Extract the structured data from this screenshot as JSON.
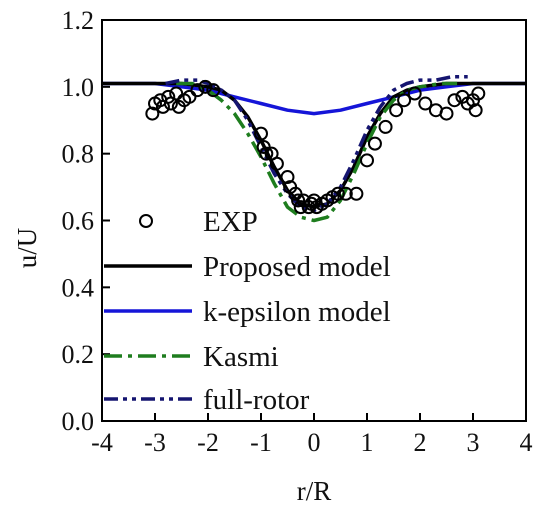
{
  "chart_data": {
    "type": "line",
    "title": "",
    "xlabel": "r/R",
    "ylabel": "u/U",
    "xlim": [
      -4,
      4
    ],
    "ylim": [
      0,
      1.2
    ],
    "xticks": [
      -4,
      -3,
      -2,
      -1,
      0,
      1,
      2,
      3,
      4
    ],
    "xtick_labels": [
      "-4",
      "-3",
      "-2",
      "-1",
      "0",
      "1",
      "2",
      "3",
      "4"
    ],
    "yticks": [
      0,
      0.2,
      0.4,
      0.6,
      0.8,
      1.0,
      1.2
    ],
    "ytick_labels": [
      "0.0",
      "0.2",
      "0.4",
      "0.6",
      "0.8",
      "1.0",
      "1.2"
    ],
    "grid": false,
    "legend_position": "lower-left",
    "series": [
      {
        "name": "EXP",
        "style": "open-circle-markers",
        "color": "#000000",
        "points": [
          [
            -3.05,
            0.92
          ],
          [
            -3.0,
            0.95
          ],
          [
            -2.9,
            0.96
          ],
          [
            -2.85,
            0.94
          ],
          [
            -2.75,
            0.97
          ],
          [
            -2.7,
            0.95
          ],
          [
            -2.6,
            0.98
          ],
          [
            -2.55,
            0.94
          ],
          [
            -2.45,
            0.96
          ],
          [
            -2.35,
            0.97
          ],
          [
            -2.2,
            0.99
          ],
          [
            -2.05,
            1.0
          ],
          [
            -1.9,
            0.99
          ],
          [
            -1.0,
            0.86
          ],
          [
            -0.95,
            0.82
          ],
          [
            -0.9,
            0.8
          ],
          [
            -0.8,
            0.8
          ],
          [
            -0.7,
            0.77
          ],
          [
            -0.5,
            0.73
          ],
          [
            -0.45,
            0.7
          ],
          [
            -0.35,
            0.68
          ],
          [
            -0.3,
            0.66
          ],
          [
            -0.25,
            0.64
          ],
          [
            -0.2,
            0.66
          ],
          [
            -0.1,
            0.64
          ],
          [
            -0.05,
            0.65
          ],
          [
            0.0,
            0.66
          ],
          [
            0.05,
            0.64
          ],
          [
            0.15,
            0.65
          ],
          [
            0.25,
            0.66
          ],
          [
            0.35,
            0.67
          ],
          [
            0.45,
            0.68
          ],
          [
            0.6,
            0.68
          ],
          [
            0.8,
            0.68
          ],
          [
            1.0,
            0.78
          ],
          [
            1.15,
            0.83
          ],
          [
            1.35,
            0.88
          ],
          [
            1.55,
            0.93
          ],
          [
            1.7,
            0.96
          ],
          [
            1.9,
            0.98
          ],
          [
            2.1,
            0.95
          ],
          [
            2.3,
            0.93
          ],
          [
            2.5,
            0.92
          ],
          [
            2.65,
            0.96
          ],
          [
            2.8,
            0.97
          ],
          [
            2.9,
            0.95
          ],
          [
            3.0,
            0.96
          ],
          [
            3.05,
            0.93
          ],
          [
            3.1,
            0.98
          ]
        ]
      },
      {
        "name": "Proposed model",
        "style": "solid",
        "color": "#000000",
        "x": [
          -4,
          -3,
          -2.5,
          -2,
          -1.75,
          -1.5,
          -1.25,
          -1,
          -0.75,
          -0.5,
          -0.25,
          0,
          0.25,
          0.5,
          0.75,
          1,
          1.25,
          1.5,
          1.75,
          2,
          2.5,
          3,
          4
        ],
        "y": [
          1.01,
          1.01,
          1.01,
          1.0,
          0.99,
          0.96,
          0.91,
          0.84,
          0.76,
          0.69,
          0.65,
          0.64,
          0.65,
          0.69,
          0.76,
          0.85,
          0.92,
          0.97,
          0.99,
          1.0,
          1.01,
          1.01,
          1.01
        ]
      },
      {
        "name": "k-epsilon model",
        "style": "solid",
        "color": "#1515d8",
        "x": [
          -4,
          -3,
          -2.5,
          -2,
          -1.5,
          -1,
          -0.5,
          0,
          0.5,
          1,
          1.5,
          2,
          2.5,
          3,
          4
        ],
        "y": [
          1.01,
          1.01,
          1.0,
          0.99,
          0.97,
          0.95,
          0.93,
          0.92,
          0.93,
          0.95,
          0.97,
          0.99,
          1.0,
          1.01,
          1.01
        ]
      },
      {
        "name": "Kasmi",
        "style": "dash-dot",
        "color": "#1e7d1e",
        "x": [
          -2.6,
          -2.3,
          -2,
          -1.75,
          -1.5,
          -1.25,
          -1,
          -0.75,
          -0.5,
          -0.25,
          0,
          0.25,
          0.5,
          0.75,
          1,
          1.25,
          1.5,
          1.75,
          2,
          2.4,
          2.7
        ],
        "y": [
          1.01,
          1.01,
          0.99,
          0.96,
          0.92,
          0.86,
          0.79,
          0.71,
          0.64,
          0.61,
          0.6,
          0.61,
          0.66,
          0.74,
          0.83,
          0.91,
          0.96,
          0.99,
          1.0,
          1.01,
          1.01
        ]
      },
      {
        "name": "full-rotor",
        "style": "dash-dot-dot",
        "color": "#151570",
        "x": [
          -2.8,
          -2.5,
          -2.2,
          -2,
          -1.75,
          -1.5,
          -1.25,
          -1,
          -0.75,
          -0.5,
          -0.25,
          0,
          0.25,
          0.5,
          0.75,
          1,
          1.25,
          1.5,
          1.75,
          2,
          2.3,
          2.6,
          2.9
        ],
        "y": [
          1.01,
          1.02,
          1.02,
          1.01,
          0.99,
          0.96,
          0.9,
          0.82,
          0.74,
          0.68,
          0.64,
          0.63,
          0.65,
          0.7,
          0.78,
          0.87,
          0.94,
          0.99,
          1.01,
          1.02,
          1.02,
          1.03,
          1.03
        ]
      }
    ]
  }
}
